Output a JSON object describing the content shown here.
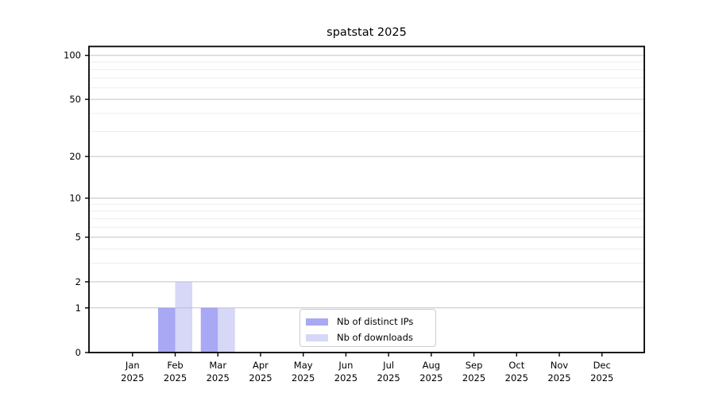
{
  "figure": {
    "background_color": "#ffffff",
    "text_color": "#000000"
  },
  "chart_data": {
    "type": "bar",
    "title": "spatstat 2025",
    "categories": [
      "Jan 2025",
      "Feb 2025",
      "Mar 2025",
      "Apr 2025",
      "May 2025",
      "Jun 2025",
      "Jul 2025",
      "Aug 2025",
      "Sep 2025",
      "Oct 2025",
      "Nov 2025",
      "Dec 2025"
    ],
    "series": [
      {
        "name": "Nb of distinct IPs",
        "values": [
          0,
          1,
          1,
          0,
          0,
          0,
          0,
          0,
          0,
          0,
          0,
          0
        ],
        "fill": "rgba(122,122,240,0.65)",
        "hex_on_white": "#a9a9f6"
      },
      {
        "name": "Nb of downloads",
        "values": [
          0,
          2,
          1,
          0,
          0,
          0,
          0,
          0,
          0,
          0,
          0,
          0
        ],
        "fill": "rgba(178,178,240,0.52)",
        "hex_on_white": "#d9d9f7"
      }
    ],
    "xlabel": "",
    "ylabel": "",
    "y_scale": "log1p",
    "ylim": [
      0,
      115
    ],
    "y_major_ticks": [
      0,
      1,
      2,
      5,
      10,
      20,
      50,
      100
    ],
    "y_minor_ticks": [
      3,
      4,
      6,
      7,
      8,
      9,
      30,
      40,
      60,
      70,
      80,
      90
    ],
    "grid": "horizontal",
    "legend_position": "inside-bottom-center"
  },
  "colors": {
    "major_grid": "#c3c3c3",
    "minor_grid": "#ededed",
    "spine": "#000000"
  }
}
